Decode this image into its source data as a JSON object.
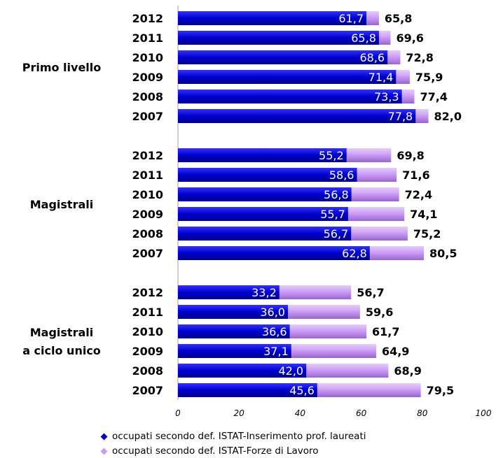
{
  "chart_data": {
    "type": "bar",
    "orientation": "horizontal",
    "groups": [
      {
        "label": [
          "Primo livello"
        ],
        "categories": [
          "2012",
          "2011",
          "2010",
          "2009",
          "2008",
          "2007"
        ],
        "inserimento": [
          61.7,
          65.8,
          68.6,
          71.4,
          73.3,
          77.8
        ],
        "inserimento_labels": [
          "61,7",
          "65,8",
          "68,6",
          "71,4",
          "73,3",
          "77,8"
        ],
        "forze": [
          65.8,
          69.6,
          72.8,
          75.9,
          77.4,
          82.0
        ],
        "forze_labels": [
          "65,8",
          "69,6",
          "72,8",
          "75,9",
          "77,4",
          "82,0"
        ]
      },
      {
        "label": [
          "Magistrali"
        ],
        "categories": [
          "2012",
          "2011",
          "2010",
          "2009",
          "2008",
          "2007"
        ],
        "inserimento": [
          55.2,
          58.6,
          56.8,
          55.7,
          56.7,
          62.8
        ],
        "inserimento_labels": [
          "55,2",
          "58,6",
          "56,8",
          "55,7",
          "56,7",
          "62,8"
        ],
        "forze": [
          69.8,
          71.6,
          72.4,
          74.1,
          75.2,
          80.5
        ],
        "forze_labels": [
          "69,8",
          "71,6",
          "72,4",
          "74,1",
          "75,2",
          "80,5"
        ]
      },
      {
        "label": [
          "Magistrali",
          "a ciclo unico"
        ],
        "categories": [
          "2012",
          "2011",
          "2010",
          "2009",
          "2008",
          "2007"
        ],
        "inserimento": [
          33.2,
          36.0,
          36.6,
          37.1,
          42.0,
          45.6
        ],
        "inserimento_labels": [
          "33,2",
          "36,0",
          "36,6",
          "37,1",
          "42,0",
          "45,6"
        ],
        "forze": [
          56.7,
          59.6,
          61.7,
          64.9,
          68.9,
          79.5
        ],
        "forze_labels": [
          "56,7",
          "59,6",
          "61,7",
          "64,9",
          "68,9",
          "79,5"
        ]
      }
    ],
    "xlim": [
      0,
      100
    ],
    "xticks": [
      "0",
      "20",
      "40",
      "60",
      "80",
      "100"
    ],
    "series": [
      {
        "name": "occupati secondo def. ISTAT-Inserimento prof. laureati",
        "color": "#0000cc"
      },
      {
        "name": "occupati secondo def. ISTAT-Forze di Lavoro",
        "color": "#cc99ff"
      }
    ],
    "legend_position": "bottom"
  }
}
